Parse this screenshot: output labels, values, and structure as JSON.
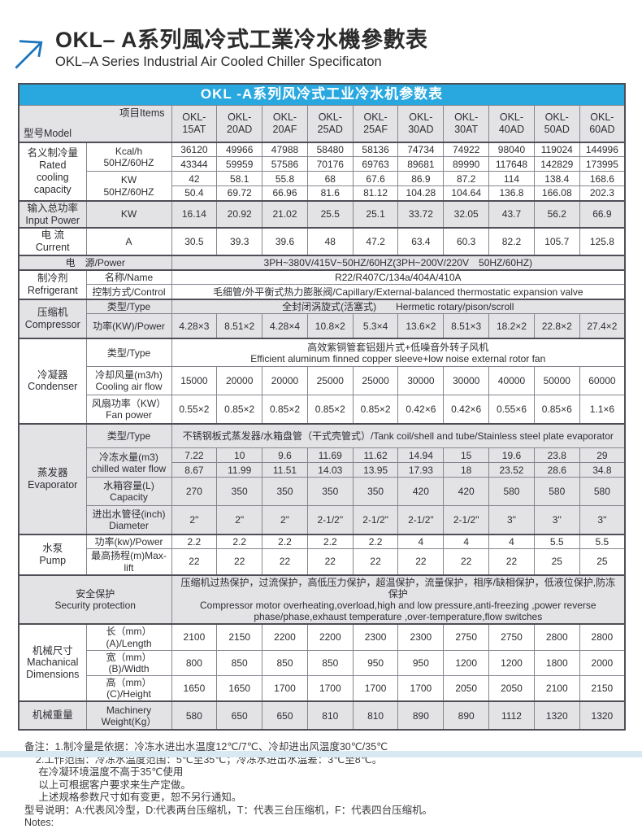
{
  "header": {
    "title_zh": "OKL– A系列風冷式工業冷水機參數表",
    "title_en": "OKL–A Series Industrial Air Cooled Chiller Specificaton"
  },
  "colors": {
    "accent_blue": "#29a8e0",
    "logo_blue": "#1b75bc",
    "shade": "#e3e3e6",
    "border": "#85858f",
    "border_strong": "#4e4e56",
    "text": "#2e2e33",
    "strip": "#d9e9f3"
  },
  "table": {
    "title": "OKL -A系列风冷式工业冷水机参数表",
    "corner_model": "型号Model",
    "corner_items": "项目Items",
    "models": [
      "OKL-\n15AT",
      "OKL-\n20AD",
      "OKL-\n20AF",
      "OKL-\n25AD",
      "OKL-\n25AF",
      "OKL-\n30AD",
      "OKL-\n30AT",
      "OKL-\n40AD",
      "OKL-\n50AD",
      "OKL-\n60AD"
    ],
    "sections": [
      {
        "id": "rated-cooling-capacity",
        "shaded": false,
        "side": "名义制冷量\nRated\ncooling\ncapacity",
        "rows": [
          {
            "h": "s",
            "item": "Kcal/h\n50HZ/60HZ",
            "item_rs": 2,
            "values": [
              "36120",
              "49966",
              "47988",
              "58480",
              "58136",
              "74734",
              "74922",
              "98040",
              "119024",
              "144996"
            ]
          },
          {
            "h": "s",
            "values": [
              "43344",
              "59959",
              "57586",
              "70176",
              "69763",
              "89681",
              "89990",
              "117648",
              "142829",
              "173995"
            ]
          },
          {
            "h": "s",
            "item": "KW\n50HZ/60HZ",
            "item_rs": 2,
            "values": [
              "42",
              "58.1",
              "55.8",
              "68",
              "67.6",
              "86.9",
              "87.2",
              "114",
              "138.4",
              "168.6"
            ]
          },
          {
            "h": "s",
            "values": [
              "50.4",
              "69.72",
              "66.96",
              "81.6",
              "81.12",
              "104.28",
              "104.64",
              "136.8",
              "166.08",
              "202.3"
            ]
          }
        ]
      },
      {
        "id": "input-power",
        "shaded": true,
        "side": "输入总功率\nInput Power",
        "rows": [
          {
            "h": "m",
            "item": "KW",
            "values": [
              "16.14",
              "20.92",
              "21.02",
              "25.5",
              "25.1",
              "33.72",
              "32.05",
              "43.7",
              "56.2",
              "66.9"
            ]
          }
        ]
      },
      {
        "id": "current",
        "shaded": false,
        "side": "电 流\nCurrent",
        "rows": [
          {
            "h": "m",
            "item": "A",
            "values": [
              "30.5",
              "39.3",
              "39.6",
              "48",
              "47.2",
              "63.4",
              "60.3",
              "82.2",
              "105.7",
              "125.8"
            ]
          }
        ]
      },
      {
        "id": "power-source",
        "shaded": true,
        "rows": [
          {
            "h": "s",
            "item": "电　源/Power",
            "item_cs": 2,
            "span": "3PH~380V/415V~50HZ/60HZ(3PH~200V/220V　50HZ/60HZ)"
          }
        ]
      },
      {
        "id": "refrigerant",
        "shaded": false,
        "side": "制冷剂\nRefrigerant",
        "rows": [
          {
            "h": "s",
            "item": "名称/Name",
            "span": "R22/R407C/134a/404A/410A"
          },
          {
            "h": "s",
            "item": "控制方式/Control",
            "span": "毛细管/外平衡式热力膨胀阀/Capillary/External-balanced thermostatic expansion valve"
          }
        ]
      },
      {
        "id": "compressor",
        "shaded": true,
        "side": "压缩机\nCompressor",
        "rows": [
          {
            "h": "s",
            "item": "类型/Type",
            "span": "全封闭涡旋式(活塞式)　　Hermetic rotary/pison/scroll"
          },
          {
            "h": "m",
            "item": "功率(KW)/Power",
            "values": [
              "4.28×3",
              "8.51×2",
              "4.28×4",
              "10.8×2",
              "5.3×4",
              "13.6×2",
              "8.51×3",
              "18.2×2",
              "22.8×2",
              "27.4×2"
            ]
          }
        ]
      },
      {
        "id": "condenser",
        "shaded": false,
        "side": "冷凝器\nCondenser",
        "rows": [
          {
            "h": "l",
            "item": "类型/Type",
            "span": "高效紫铜管套铝翅片式+低噪音外转子风机\nEfficient aluminum finned copper sleeve+low noise external rotor fan"
          },
          {
            "h": "l",
            "item": "冷却风量(m3/h)\nCooling air flow",
            "values": [
              "15000",
              "20000",
              "20000",
              "25000",
              "25000",
              "30000",
              "30000",
              "40000",
              "50000",
              "60000"
            ]
          },
          {
            "h": "l",
            "item": "风扇功率（KW）\nFan power",
            "values": [
              "0.55×2",
              "0.85×2",
              "0.85×2",
              "0.85×2",
              "0.85×2",
              "0.42×6",
              "0.42×6",
              "0.55×6",
              "0.85×6",
              "1.1×6"
            ]
          }
        ]
      },
      {
        "id": "evaporator",
        "shaded": true,
        "side": "蒸发器\nEvaporator",
        "rows": [
          {
            "h": "m",
            "item": "类型/Type",
            "span": "不锈钢板式蒸发器/水箱盘管（干式壳管式）/Tank coil/shell and tube/Stainless steel plate evaporator"
          },
          {
            "h": "s",
            "item": "冷冻水量(m3)\nchilled water flow",
            "item_rs": 2,
            "values": [
              "7.22",
              "10",
              "9.6",
              "11.69",
              "11.62",
              "14.94",
              "15",
              "19.6",
              "23.8",
              "29"
            ]
          },
          {
            "h": "s",
            "values": [
              "8.67",
              "11.99",
              "11.51",
              "14.03",
              "13.95",
              "17.93",
              "18",
              "23.52",
              "28.6",
              "34.8"
            ]
          },
          {
            "h": "l",
            "item": "水箱容量(L)\nCapacity",
            "values": [
              "270",
              "350",
              "350",
              "350",
              "350",
              "420",
              "420",
              "580",
              "580",
              "580"
            ]
          },
          {
            "h": "l",
            "item": "进出水管径(inch)\nDiameter",
            "values": [
              "2\"",
              "2\"",
              "2\"",
              "2-1/2\"",
              "2-1/2\"",
              "2-1/2\"",
              "2-1/2\"",
              "3\"",
              "3\"",
              "3\""
            ]
          }
        ]
      },
      {
        "id": "pump",
        "shaded": false,
        "side": "水泵\nPump",
        "rows": [
          {
            "h": "s",
            "item": "功率(kw)/Power",
            "values": [
              "2.2",
              "2.2",
              "2.2",
              "2.2",
              "2.2",
              "4",
              "4",
              "4",
              "5.5",
              "5.5"
            ]
          },
          {
            "h": "s",
            "item": "最高扬程(m)Max-lift",
            "values": [
              "22",
              "22",
              "22",
              "22",
              "22",
              "22",
              "22",
              "22",
              "25",
              "25"
            ]
          }
        ]
      },
      {
        "id": "security-protection",
        "shaded": true,
        "rows": [
          {
            "h": "xl",
            "item": "安全保护\nSecurity protection",
            "item_cs": 2,
            "span": "压缩机过热保护，过流保护，高低压力保护，超温保护，流量保护，相序/缺相保护，低液位保护,防冻保护\nCompressor motor overheating,overload,high and low pressure,anti-freezing ,power reverse phase/phase,exhaust temperature ,over-temperature,flow switches"
          }
        ]
      },
      {
        "id": "mechanical-dimensions",
        "shaded": false,
        "side": "机械尺寸\nMachanical\nDimensions",
        "rows": [
          {
            "h": "s",
            "item": "长（mm）(A)/Length",
            "values": [
              "2100",
              "2150",
              "2200",
              "2200",
              "2300",
              "2300",
              "2750",
              "2750",
              "2800",
              "2800"
            ]
          },
          {
            "h": "s",
            "item": "宽（mm）(B)/Width",
            "values": [
              "800",
              "850",
              "850",
              "850",
              "950",
              "950",
              "1200",
              "1200",
              "1800",
              "2000"
            ]
          },
          {
            "h": "s",
            "item": "高（mm）(C)/Height",
            "values": [
              "1650",
              "1650",
              "1700",
              "1700",
              "1700",
              "1700",
              "2050",
              "2050",
              "2100",
              "2150"
            ]
          }
        ]
      },
      {
        "id": "machinery-weight",
        "shaded": true,
        "side": "机械重量",
        "rows": [
          {
            "h": "l",
            "item": "Machinery\nWeight(Kg）",
            "values": [
              "580",
              "650",
              "650",
              "810",
              "810",
              "890",
              "890",
              "1112",
              "1320",
              "1320"
            ]
          }
        ]
      }
    ]
  },
  "notes": [
    "备注：1.制冷量是依据：冷冻水进出水温度12℃/7℃、冷却进出风温度30℃/35℃",
    "    2.工作范围：冷冻水温度范围：5℃至35℃；冷冻水进出水温差：3℃至8℃。",
    "     在冷凝环境温度不高于35℃使用",
    "     以上可根据客户要求来生产定做。",
    "     上述规格参数尺寸如有变更，恕不另行通知。",
    "型号说明：A:代表风冷型，D:代表两台压缩机，T：代表三台压缩机，F：代表四台压缩机。",
    "Notes:"
  ]
}
